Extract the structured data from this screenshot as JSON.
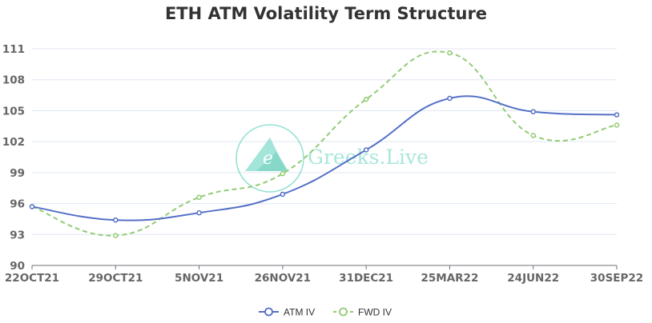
{
  "chart_data": {
    "type": "line",
    "title": "ETH ATM Volatility Term Structure",
    "xlabel": "",
    "ylabel": "",
    "categories": [
      "22OCT21",
      "29OCT21",
      "5NOV21",
      "26NOV21",
      "31DEC21",
      "25MAR22",
      "24JUN22",
      "30SEP22"
    ],
    "ylim": [
      90,
      111
    ],
    "yticks": [
      90,
      93,
      96,
      99,
      102,
      105,
      108,
      111
    ],
    "grid": true,
    "legend_position": "bottom-center",
    "series": [
      {
        "name": "ATM IV",
        "color": "#5470c6",
        "dashed": false,
        "values": [
          95.7,
          94.4,
          95.1,
          96.9,
          101.2,
          106.2,
          104.9,
          104.6
        ]
      },
      {
        "name": "FWD IV",
        "color": "#91cc75",
        "dashed": true,
        "values": [
          95.7,
          92.9,
          96.6,
          98.9,
          106.1,
          110.6,
          102.6,
          103.6
        ]
      }
    ]
  },
  "watermark": {
    "text": "Greeks.Live",
    "logo_letter": "e",
    "color": "#6fd6c3"
  }
}
